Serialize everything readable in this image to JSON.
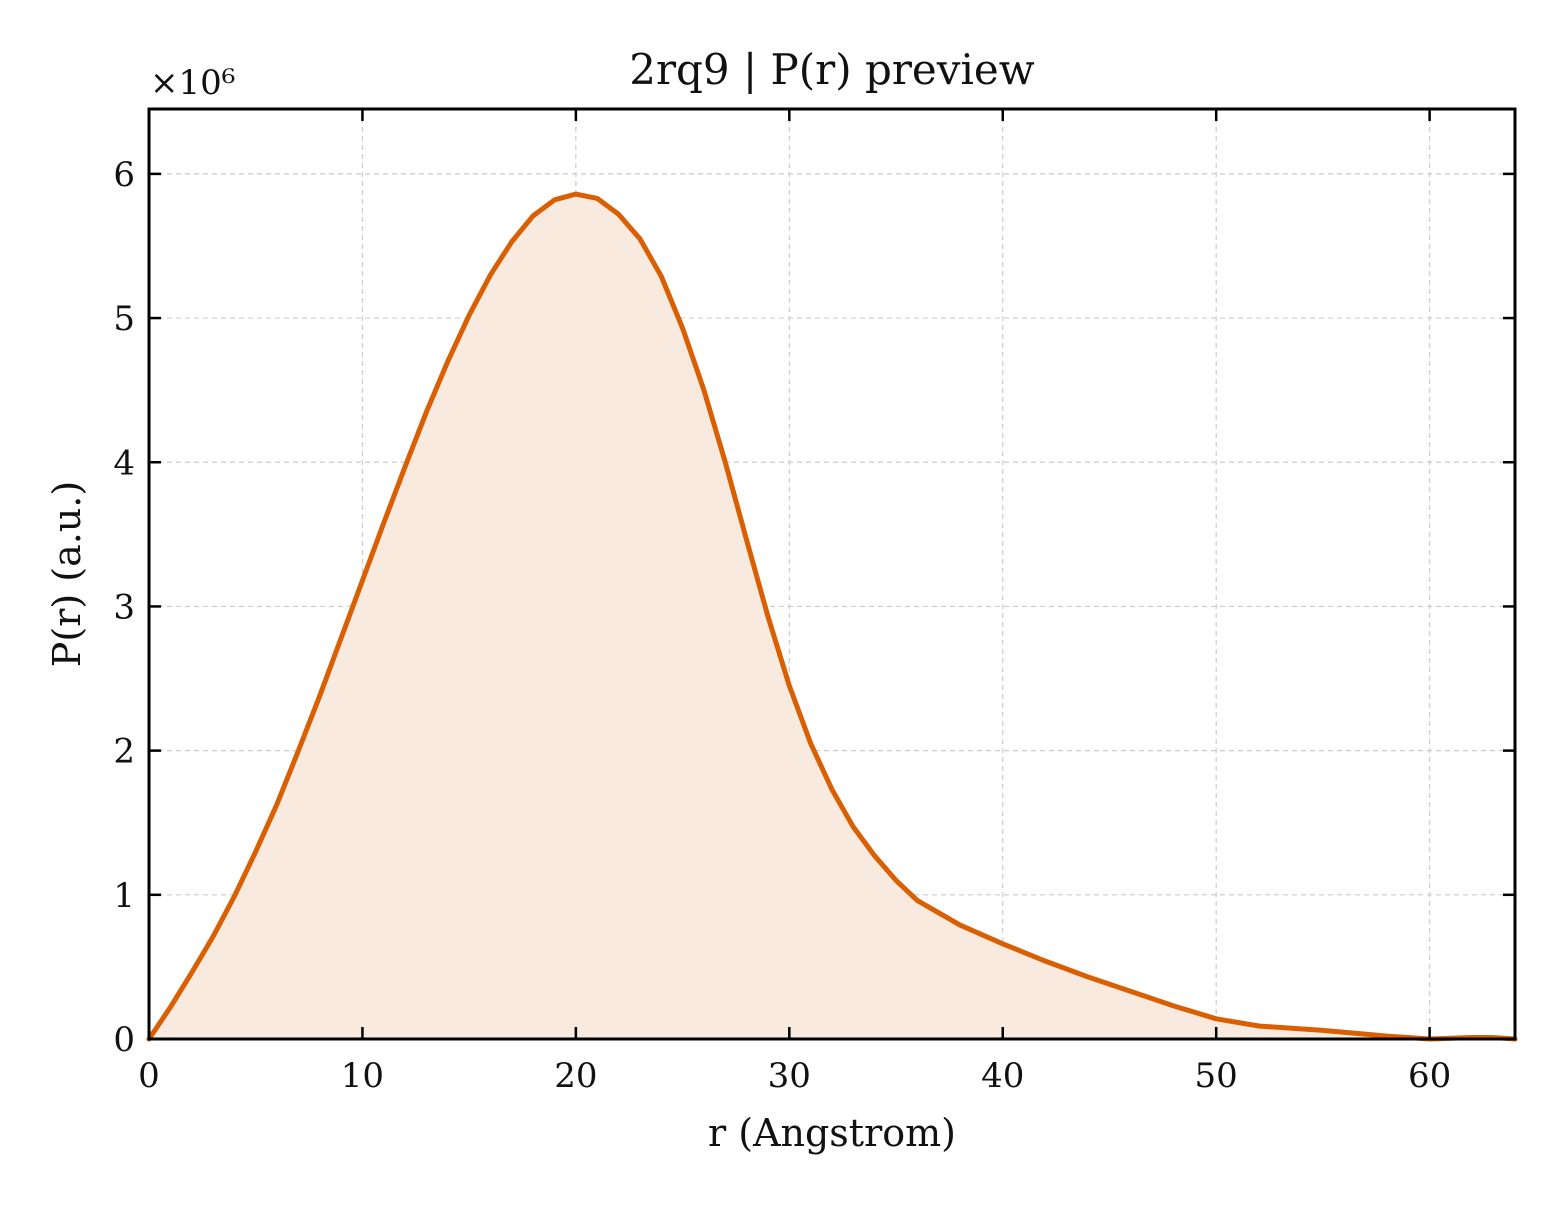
{
  "chart_data": {
    "type": "area",
    "title": "2rq9 | P(r) preview",
    "xlabel": "r (Angstrom)",
    "ylabel": "P(r) (a.u.)",
    "y_offset_label": "×10⁶",
    "y_scale": 1000000,
    "xlim": [
      0,
      64
    ],
    "ylim": [
      0,
      6.45
    ],
    "x_ticks": [
      0,
      10,
      20,
      30,
      40,
      50,
      60
    ],
    "x_tick_labels": [
      "0",
      "10",
      "20",
      "30",
      "40",
      "50",
      "60"
    ],
    "y_ticks": [
      0,
      1,
      2,
      3,
      4,
      5,
      6
    ],
    "y_tick_labels": [
      "0",
      "1",
      "2",
      "3",
      "4",
      "5",
      "6"
    ],
    "grid": true,
    "colors": {
      "line": "#d95f02",
      "fill": "#f8eadf",
      "grid": "#cccccc",
      "axes": "#000000"
    },
    "series": [
      {
        "x": [
          0,
          1,
          2,
          3,
          4,
          5,
          6,
          7,
          8,
          9,
          10,
          11,
          12,
          13,
          14,
          15,
          16,
          17,
          18,
          19,
          20,
          21,
          22,
          23,
          24,
          25,
          26,
          27,
          28,
          29,
          30,
          31,
          32,
          33,
          34,
          35,
          36,
          38,
          40,
          42,
          44,
          46,
          48,
          50,
          52,
          55,
          58,
          60,
          62,
          63,
          64
        ],
        "y": [
          0.0,
          0.22,
          0.46,
          0.71,
          0.99,
          1.3,
          1.63,
          2.0,
          2.38,
          2.78,
          3.18,
          3.58,
          3.97,
          4.35,
          4.7,
          5.02,
          5.3,
          5.53,
          5.71,
          5.82,
          5.86,
          5.83,
          5.72,
          5.55,
          5.29,
          4.93,
          4.5,
          4.0,
          3.46,
          2.93,
          2.45,
          2.05,
          1.73,
          1.47,
          1.27,
          1.1,
          0.96,
          0.79,
          0.66,
          0.54,
          0.43,
          0.33,
          0.23,
          0.14,
          0.09,
          0.06,
          0.02,
          0.0,
          0.01,
          0.01,
          0.0
        ]
      }
    ]
  }
}
